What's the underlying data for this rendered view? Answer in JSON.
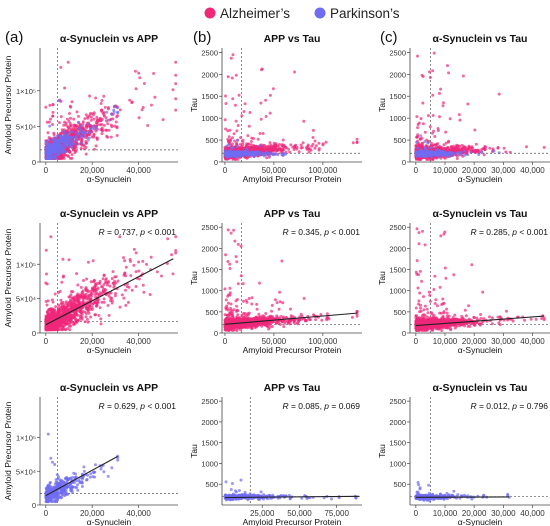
{
  "legend": {
    "placement": "top-center",
    "items": [
      {
        "label": "Alzheimer’s",
        "color": "#f0287a"
      },
      {
        "label": "Parkinson’s",
        "color": "#6f6cf2"
      }
    ]
  },
  "columns": [
    {
      "label": "(a)"
    },
    {
      "label": "(b)"
    },
    {
      "label": "(c)"
    }
  ],
  "chart_data": [
    {
      "id": "p1",
      "type": "scatter",
      "title": "α-Synuclein vs APP",
      "xlabel": "α-Synuclein",
      "ylabel": "Amyloid Precursor Protein",
      "xlim": [
        -2500,
        57000
      ],
      "ylim": [
        0,
        160000
      ],
      "xticks": [
        {
          "v": 0,
          "label": "0"
        },
        {
          "v": 20000,
          "label": "20,000"
        },
        {
          "v": 40000,
          "label": "40,000"
        }
      ],
      "yticks": [
        {
          "v": 0,
          "label": "0"
        },
        {
          "v": 50000,
          "label": "5×10⁴"
        },
        {
          "v": 100000,
          "label": "1×10⁵"
        }
      ],
      "vline": 5000,
      "hline": 17000,
      "series": [
        {
          "name": "Alzheimer’s",
          "color": "#f0287a",
          "n": 1100
        },
        {
          "name": "Parkinson’s",
          "color": "#6f6cf2",
          "n": 320
        }
      ],
      "dist": "synapp",
      "annotation": null,
      "fit": null
    },
    {
      "id": "p2",
      "type": "scatter",
      "title": "APP vs Tau",
      "xlabel": "Amyloid Precursor Protein",
      "ylabel": "Tau",
      "xlim": [
        -3000,
        140000
      ],
      "ylim": [
        0,
        2600
      ],
      "xticks": [
        {
          "v": 0,
          "label": "0"
        },
        {
          "v": 50000,
          "label": "50,000"
        },
        {
          "v": 100000,
          "label": "100,000"
        }
      ],
      "yticks": [
        {
          "v": 0,
          "label": "0"
        },
        {
          "v": 500,
          "label": "500"
        },
        {
          "v": 1000,
          "label": "1000"
        },
        {
          "v": 1500,
          "label": "1500"
        },
        {
          "v": 2000,
          "label": "2000"
        },
        {
          "v": 2500,
          "label": "2500"
        }
      ],
      "vline": 17000,
      "hline": 200,
      "series": [
        {
          "name": "Alzheimer’s",
          "color": "#f0287a",
          "n": 1000
        },
        {
          "name": "Parkinson’s",
          "color": "#6f6cf2",
          "n": 320
        }
      ],
      "dist": "apptau",
      "annotation": null,
      "fit": null
    },
    {
      "id": "p3",
      "type": "scatter",
      "title": "α-Synuclein vs Tau",
      "xlabel": "α-Synuclein",
      "ylabel": "Tau",
      "xlim": [
        -2000,
        46000
      ],
      "ylim": [
        0,
        2600
      ],
      "xticks": [
        {
          "v": 0,
          "label": "0"
        },
        {
          "v": 10000,
          "label": "10,000"
        },
        {
          "v": 20000,
          "label": "20,000"
        },
        {
          "v": 30000,
          "label": "30,000"
        },
        {
          "v": 40000,
          "label": "40,000"
        }
      ],
      "yticks": [
        {
          "v": 0,
          "label": "0"
        },
        {
          "v": 500,
          "label": "500"
        },
        {
          "v": 1000,
          "label": "1000"
        },
        {
          "v": 1500,
          "label": "1500"
        },
        {
          "v": 2000,
          "label": "2000"
        },
        {
          "v": 2500,
          "label": "2500"
        }
      ],
      "vline": 5000,
      "hline": 200,
      "series": [
        {
          "name": "Alzheimer’s",
          "color": "#f0287a",
          "n": 1000
        },
        {
          "name": "Parkinson’s",
          "color": "#6f6cf2",
          "n": 320
        }
      ],
      "dist": "syntau",
      "annotation": null,
      "fit": null
    },
    {
      "id": "p4",
      "type": "scatter",
      "title": "α-Synuclein vs APP",
      "xlabel": "α-Synuclein",
      "ylabel": "Amyloid Precursor Protein",
      "xlim": [
        -2500,
        57000
      ],
      "ylim": [
        0,
        160000
      ],
      "xticks": [
        {
          "v": 0,
          "label": "0"
        },
        {
          "v": 20000,
          "label": "20,000"
        },
        {
          "v": 40000,
          "label": "40,000"
        }
      ],
      "yticks": [
        {
          "v": 0,
          "label": "0"
        },
        {
          "v": 50000,
          "label": "5×10⁴"
        },
        {
          "v": 100000,
          "label": "1×10⁵"
        }
      ],
      "vline": 5000,
      "hline": 17000,
      "series": [
        {
          "name": "Alzheimer’s",
          "color": "#f0287a",
          "n": 1200
        }
      ],
      "dist": "synapp",
      "annotation": {
        "R": "0.737",
        "p": "< 0.001"
      },
      "fit": {
        "x": [
          0,
          55000
        ],
        "y": [
          12000,
          108000
        ]
      }
    },
    {
      "id": "p5",
      "type": "scatter",
      "title": "APP vs Tau",
      "xlabel": "Amyloid Precursor Protein",
      "ylabel": "Tau",
      "xlim": [
        -3000,
        140000
      ],
      "ylim": [
        0,
        2600
      ],
      "xticks": [
        {
          "v": 0,
          "label": "0"
        },
        {
          "v": 50000,
          "label": "50,000"
        },
        {
          "v": 100000,
          "label": "100,000"
        }
      ],
      "yticks": [
        {
          "v": 0,
          "label": "0"
        },
        {
          "v": 500,
          "label": "500"
        },
        {
          "v": 1000,
          "label": "1000"
        },
        {
          "v": 1500,
          "label": "1500"
        },
        {
          "v": 2000,
          "label": "2000"
        },
        {
          "v": 2500,
          "label": "2500"
        }
      ],
      "vline": 17000,
      "hline": 200,
      "series": [
        {
          "name": "Alzheimer’s",
          "color": "#f0287a",
          "n": 1100
        }
      ],
      "dist": "apptau",
      "annotation": {
        "R": "0.345",
        "p": "< 0.001"
      },
      "fit": {
        "x": [
          0,
          135000
        ],
        "y": [
          205,
          470
        ]
      }
    },
    {
      "id": "p6",
      "type": "scatter",
      "title": "α-Synuclein vs Tau",
      "xlabel": "α-Synuclein",
      "ylabel": "Tau",
      "xlim": [
        -2000,
        46000
      ],
      "ylim": [
        0,
        2600
      ],
      "xticks": [
        {
          "v": 0,
          "label": "0"
        },
        {
          "v": 10000,
          "label": "10,000"
        },
        {
          "v": 20000,
          "label": "20,000"
        },
        {
          "v": 30000,
          "label": "30,000"
        },
        {
          "v": 40000,
          "label": "40,000"
        }
      ],
      "yticks": [
        {
          "v": 0,
          "label": "0"
        },
        {
          "v": 500,
          "label": "500"
        },
        {
          "v": 1000,
          "label": "1000"
        },
        {
          "v": 1500,
          "label": "1500"
        },
        {
          "v": 2000,
          "label": "2000"
        },
        {
          "v": 2500,
          "label": "2500"
        }
      ],
      "vline": 5000,
      "hline": 200,
      "series": [
        {
          "name": "Alzheimer’s",
          "color": "#f0287a",
          "n": 1100
        }
      ],
      "dist": "syntau",
      "annotation": {
        "R": "0.285",
        "p": "< 0.001"
      },
      "fit": {
        "x": [
          0,
          44000
        ],
        "y": [
          175,
          400
        ]
      }
    },
    {
      "id": "p7",
      "type": "scatter",
      "title": "α-Synuclein vs APP",
      "xlabel": "α-Synuclein",
      "ylabel": "Amyloid Precursor Protein",
      "xlim": [
        -2500,
        57000
      ],
      "ylim": [
        0,
        160000
      ],
      "xticks": [
        {
          "v": 0,
          "label": "0"
        },
        {
          "v": 20000,
          "label": "20,000"
        },
        {
          "v": 40000,
          "label": "40,000"
        }
      ],
      "yticks": [
        {
          "v": 0,
          "label": "0"
        },
        {
          "v": 50000,
          "label": "5×10⁴"
        },
        {
          "v": 100000,
          "label": "1×10⁵"
        }
      ],
      "vline": 5000,
      "hline": 17000,
      "series": [
        {
          "name": "Parkinson’s",
          "color": "#6f6cf2",
          "n": 380
        }
      ],
      "dist": "synapp_pd",
      "annotation": {
        "R": "0.629",
        "p": "< 0.001"
      },
      "fit": {
        "x": [
          0,
          31000
        ],
        "y": [
          14000,
          72000
        ]
      }
    },
    {
      "id": "p8",
      "type": "scatter",
      "title": "APP vs Tau",
      "xlabel": "Amyloid Precursor Protein",
      "ylabel": "Tau",
      "xlim": [
        -2000,
        92000
      ],
      "ylim": [
        0,
        2600
      ],
      "xticks": [
        {
          "v": 25000,
          "label": "25,000"
        },
        {
          "v": 50000,
          "label": "50,000"
        },
        {
          "v": 75000,
          "label": "75,000"
        }
      ],
      "yticks": [
        {
          "v": 500,
          "label": "500"
        },
        {
          "v": 1000,
          "label": "1000"
        },
        {
          "v": 1500,
          "label": "1500"
        },
        {
          "v": 2000,
          "label": "2000"
        },
        {
          "v": 2500,
          "label": "2500"
        }
      ],
      "vline": 17000,
      "hline": 200,
      "series": [
        {
          "name": "Parkinson’s",
          "color": "#6f6cf2",
          "n": 380
        }
      ],
      "dist": "apptau_pd",
      "annotation": {
        "R": "0.085",
        "p": "0.069"
      },
      "fit": {
        "x": [
          0,
          90000
        ],
        "y": [
          180,
          210
        ]
      }
    },
    {
      "id": "p9",
      "type": "scatter",
      "title": "α-Synuclein vs Tau",
      "xlabel": "α-Synuclein",
      "ylabel": "Tau",
      "xlim": [
        -2000,
        46000
      ],
      "ylim": [
        0,
        2600
      ],
      "xticks": [
        {
          "v": 0,
          "label": "0"
        },
        {
          "v": 10000,
          "label": "10,000"
        },
        {
          "v": 20000,
          "label": "20,000"
        },
        {
          "v": 30000,
          "label": "30,000"
        },
        {
          "v": 40000,
          "label": "40,000"
        }
      ],
      "yticks": [
        {
          "v": 500,
          "label": "500"
        },
        {
          "v": 1000,
          "label": "1000"
        },
        {
          "v": 1500,
          "label": "1500"
        },
        {
          "v": 2000,
          "label": "2000"
        },
        {
          "v": 2500,
          "label": "2500"
        }
      ],
      "vline": 5000,
      "hline": 200,
      "series": [
        {
          "name": "Parkinson’s",
          "color": "#6f6cf2",
          "n": 380
        }
      ],
      "dist": "syntau_pd",
      "annotation": {
        "R": "0.012",
        "p": "0.796"
      },
      "fit": {
        "x": [
          0,
          32000
        ],
        "y": [
          185,
          195
        ]
      }
    }
  ]
}
